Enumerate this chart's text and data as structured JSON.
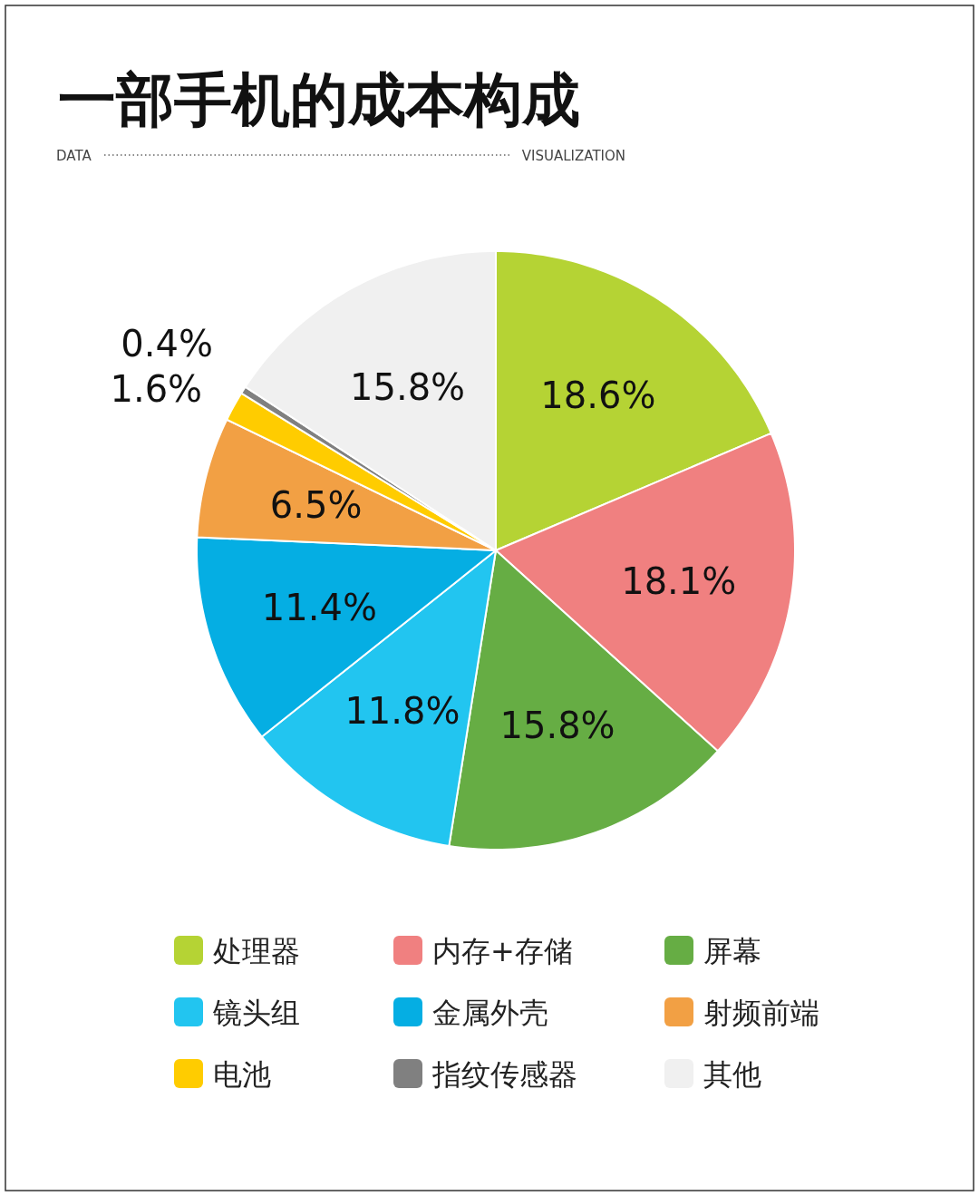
{
  "chart_data": {
    "type": "pie",
    "title": "一部手机的成本构成",
    "annotations": [
      "DATA",
      "VISUALIZATION"
    ],
    "categories": [
      "处理器",
      "内存+存储",
      "屏幕",
      "镜头组",
      "金属外壳",
      "射频前端",
      "电池",
      "指纹传感器",
      "其他"
    ],
    "values": [
      18.6,
      18.1,
      15.8,
      11.8,
      11.4,
      6.5,
      1.6,
      0.4,
      15.8
    ],
    "value_labels": [
      "18.6%",
      "18.1%",
      "15.8%",
      "11.8%",
      "11.4%",
      "6.5%",
      "1.6%",
      "0.4%",
      "15.8%"
    ],
    "colors": [
      "#b5d334",
      "#f08080",
      "#66ad44",
      "#22c5f0",
      "#05aee3",
      "#f2a044",
      "#ffcc00",
      "#808080",
      "#f0f0f0"
    ],
    "legend": "bottom"
  }
}
